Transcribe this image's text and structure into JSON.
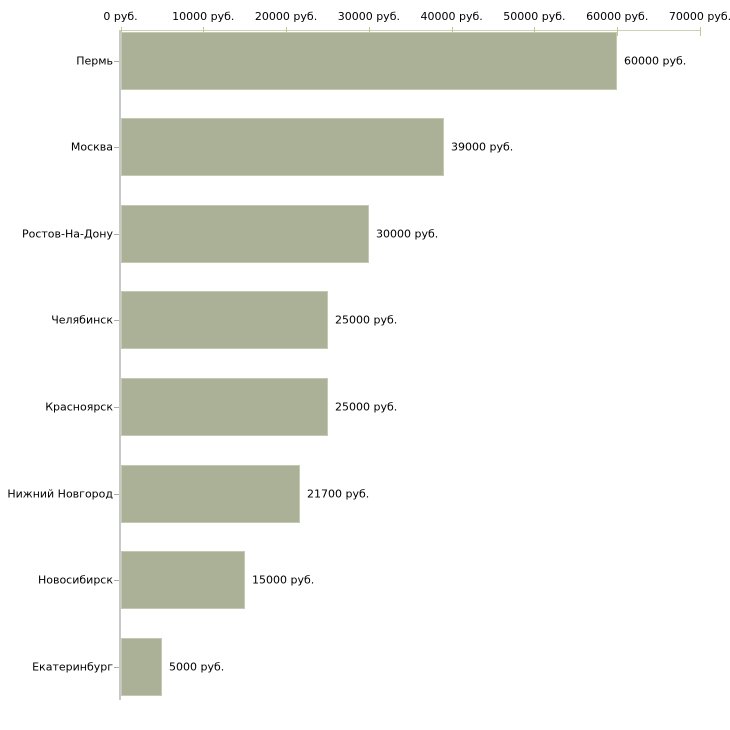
{
  "chart_data": {
    "type": "bar",
    "orientation": "horizontal",
    "title": "",
    "categories": [
      "Пермь",
      "Москва",
      "Ростов-На-Дону",
      "Челябинск",
      "Красноярск",
      "Нижний Новгород",
      "Новосибирск",
      "Екатеринбург"
    ],
    "values": [
      60000,
      39000,
      30000,
      25000,
      25000,
      21700,
      15000,
      5000
    ],
    "value_labels": [
      "60000 руб.",
      "39000 руб.",
      "30000 руб.",
      "25000 руб.",
      "25000 руб.",
      "21700 руб.",
      "15000 руб.",
      "5000 руб."
    ],
    "x_axis": {
      "position": "top",
      "min": 0,
      "max": 70000,
      "ticks": [
        0,
        10000,
        20000,
        30000,
        40000,
        50000,
        60000,
        70000
      ],
      "tick_labels": [
        "0 руб.",
        "10000 руб.",
        "20000 руб.",
        "30000 руб.",
        "40000 руб.",
        "50000 руб.",
        "60000 руб.",
        "70000 руб."
      ],
      "unit": "руб."
    },
    "grid": false,
    "legend": false,
    "colors": {
      "bar_fill": "#abb197",
      "bar_border": "#c4c9b3",
      "vertical_axis": "#c9c9c9",
      "horizontal_axis": "#cfcfb6",
      "tick_mark": "#c6c694",
      "y_dash": "#b0b091",
      "label_text": "#000000",
      "background": "#ffffff"
    }
  }
}
